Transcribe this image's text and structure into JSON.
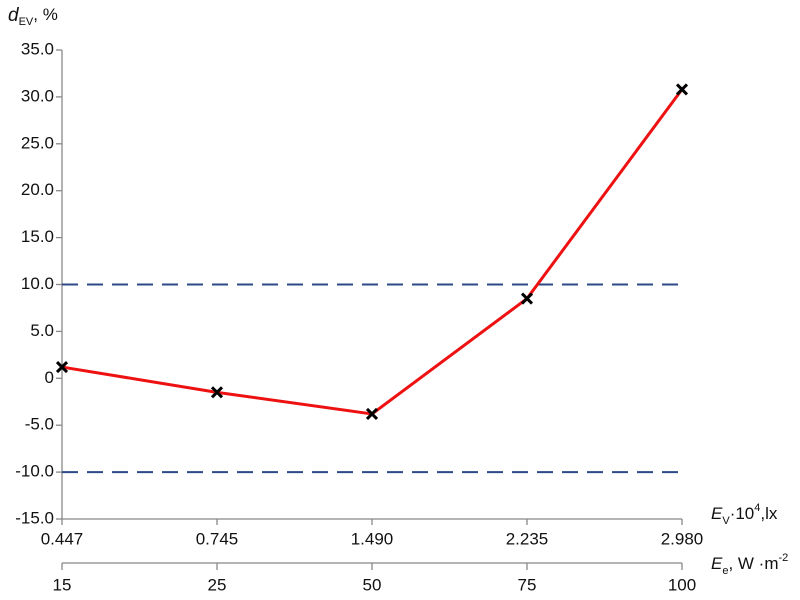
{
  "chart_data": {
    "type": "line",
    "y_label": {
      "symbol": "d",
      "subscript": "EV",
      "unit": ", %"
    },
    "x_label": {
      "symbol": "E",
      "subscript": "V",
      "factor": "·10",
      "superscript": "4",
      "unit": ",lx"
    },
    "x2_label": {
      "symbol": "E",
      "subscript": "e",
      "unit": ", W ·m",
      "superscript": "-2"
    },
    "categories": [
      "0.447",
      "0.745",
      "1.490",
      "2.235",
      "2.980"
    ],
    "categories2": [
      "15",
      "25",
      "50",
      "75",
      "100"
    ],
    "series": [
      {
        "color": "#ee1111",
        "marker_color": "#000000",
        "values": [
          1.2,
          -1.5,
          -3.8,
          8.5,
          30.8
        ]
      }
    ],
    "ylim": [
      -15,
      35
    ],
    "yticks": [
      {
        "value": -15,
        "label": "-15.0"
      },
      {
        "value": -10,
        "label": "-10.0"
      },
      {
        "value": -5,
        "label": "-5.0"
      },
      0,
      {
        "value": 5,
        "label": "5.0"
      },
      {
        "value": 10,
        "label": "10.0"
      },
      {
        "value": 15,
        "label": "15.0"
      },
      {
        "value": 20,
        "label": "20.0"
      },
      {
        "value": 25,
        "label": "25.0"
      },
      {
        "value": 30,
        "label": "30.0"
      },
      {
        "value": 35,
        "label": "35.0"
      }
    ],
    "reference_lines": [
      10,
      -10
    ],
    "reference_color": "#2b4a86"
  }
}
